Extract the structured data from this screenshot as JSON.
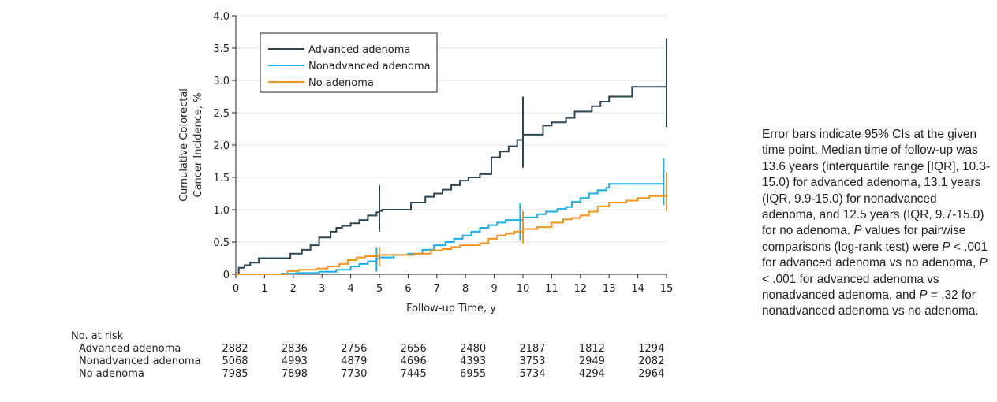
{
  "chart_data": {
    "type": "line",
    "ylabel_lines": [
      "Cumulative Colorectal",
      "Cancer Incidence, %"
    ],
    "xlabel": "Follow-up Time, y",
    "xlim": [
      0,
      15
    ],
    "ylim": [
      0,
      4
    ],
    "x_ticks": [
      "0",
      "1",
      "2",
      "3",
      "4",
      "5",
      "6",
      "7",
      "8",
      "9",
      "10",
      "11",
      "12",
      "13",
      "14",
      "15"
    ],
    "y_ticks": [
      "0",
      "0.5",
      "1.0",
      "1.5",
      "2.0",
      "2.5",
      "3.0",
      "3.5",
      "4.0"
    ],
    "grid": "horizontal",
    "legend_position": "top-left",
    "series": [
      {
        "name": "Advanced adenoma",
        "color": "#2d4654",
        "steps": [
          [
            0,
            0
          ],
          [
            0.1,
            0.1
          ],
          [
            0.3,
            0.14
          ],
          [
            0.5,
            0.18
          ],
          [
            0.8,
            0.25
          ],
          [
            1.5,
            0.25
          ],
          [
            1.9,
            0.32
          ],
          [
            2.3,
            0.38
          ],
          [
            2.6,
            0.45
          ],
          [
            2.9,
            0.57
          ],
          [
            3.3,
            0.66
          ],
          [
            3.5,
            0.72
          ],
          [
            3.7,
            0.75
          ],
          [
            4.0,
            0.79
          ],
          [
            4.3,
            0.84
          ],
          [
            4.6,
            0.91
          ],
          [
            4.9,
            0.96
          ],
          [
            5.0,
            0.98
          ],
          [
            5.1,
            1.0
          ],
          [
            5.7,
            1.0
          ],
          [
            6.1,
            1.11
          ],
          [
            6.6,
            1.2
          ],
          [
            6.9,
            1.25
          ],
          [
            7.2,
            1.31
          ],
          [
            7.5,
            1.38
          ],
          [
            7.8,
            1.45
          ],
          [
            8.1,
            1.5
          ],
          [
            8.5,
            1.55
          ],
          [
            8.9,
            1.81
          ],
          [
            9.2,
            1.9
          ],
          [
            9.5,
            1.98
          ],
          [
            9.8,
            2.08
          ],
          [
            10.0,
            2.16
          ],
          [
            10.7,
            2.3
          ],
          [
            11.0,
            2.35
          ],
          [
            11.5,
            2.42
          ],
          [
            11.8,
            2.52
          ],
          [
            12.4,
            2.6
          ],
          [
            12.7,
            2.67
          ],
          [
            13.0,
            2.75
          ],
          [
            13.8,
            2.9
          ],
          [
            14.2,
            2.9
          ],
          [
            15.0,
            2.9
          ]
        ],
        "ci": [
          {
            "x": 5,
            "low": 0.66,
            "high": 1.38
          },
          {
            "x": 10,
            "low": 1.65,
            "high": 2.75
          },
          {
            "x": 15,
            "low": 2.28,
            "high": 3.65
          }
        ]
      },
      {
        "name": "Nonadvanced adenoma",
        "color": "#1aaee5",
        "steps": [
          [
            0,
            0
          ],
          [
            1.4,
            0
          ],
          [
            1.6,
            0.01
          ],
          [
            2.1,
            0.02
          ],
          [
            2.9,
            0.04
          ],
          [
            3.5,
            0.07
          ],
          [
            4.0,
            0.12
          ],
          [
            4.3,
            0.16
          ],
          [
            4.6,
            0.2
          ],
          [
            4.9,
            0.24
          ],
          [
            5.0,
            0.26
          ],
          [
            5.5,
            0.3
          ],
          [
            6.0,
            0.32
          ],
          [
            6.5,
            0.38
          ],
          [
            6.9,
            0.45
          ],
          [
            7.3,
            0.5
          ],
          [
            7.6,
            0.55
          ],
          [
            7.9,
            0.6
          ],
          [
            8.2,
            0.66
          ],
          [
            8.5,
            0.72
          ],
          [
            8.8,
            0.76
          ],
          [
            9.1,
            0.8
          ],
          [
            9.4,
            0.84
          ],
          [
            9.7,
            0.84
          ],
          [
            10.0,
            0.88
          ],
          [
            10.2,
            0.88
          ],
          [
            10.5,
            0.93
          ],
          [
            10.8,
            0.97
          ],
          [
            11.2,
            1.01
          ],
          [
            11.5,
            1.04
          ],
          [
            11.7,
            1.12
          ],
          [
            12.0,
            1.18
          ],
          [
            12.3,
            1.25
          ],
          [
            12.6,
            1.3
          ],
          [
            12.9,
            1.34
          ],
          [
            13.0,
            1.4
          ],
          [
            14.9,
            1.4
          ]
        ],
        "ci": [
          {
            "x": 4.9,
            "low": 0.04,
            "high": 0.42
          },
          {
            "x": 9.9,
            "low": 0.52,
            "high": 1.1
          },
          {
            "x": 14.9,
            "low": 1.07,
            "high": 1.8
          }
        ]
      },
      {
        "name": "No adenoma",
        "color": "#f7941d",
        "steps": [
          [
            0,
            0
          ],
          [
            1.5,
            0
          ],
          [
            1.8,
            0.05
          ],
          [
            2.2,
            0.07
          ],
          [
            2.8,
            0.09
          ],
          [
            3.2,
            0.12
          ],
          [
            3.6,
            0.16
          ],
          [
            3.9,
            0.22
          ],
          [
            4.2,
            0.26
          ],
          [
            4.5,
            0.28
          ],
          [
            5.0,
            0.3
          ],
          [
            6.2,
            0.32
          ],
          [
            6.8,
            0.37
          ],
          [
            7.2,
            0.39
          ],
          [
            7.5,
            0.42
          ],
          [
            7.8,
            0.45
          ],
          [
            8.5,
            0.48
          ],
          [
            8.8,
            0.55
          ],
          [
            9.1,
            0.6
          ],
          [
            9.4,
            0.63
          ],
          [
            9.7,
            0.66
          ],
          [
            10.0,
            0.7
          ],
          [
            10.5,
            0.73
          ],
          [
            11.0,
            0.8
          ],
          [
            11.4,
            0.85
          ],
          [
            11.7,
            0.87
          ],
          [
            12.0,
            0.91
          ],
          [
            12.3,
            0.97
          ],
          [
            12.6,
            1.05
          ],
          [
            13.0,
            1.11
          ],
          [
            13.6,
            1.14
          ],
          [
            14.0,
            1.18
          ],
          [
            14.4,
            1.21
          ],
          [
            15.0,
            1.23
          ]
        ],
        "ci": [
          {
            "x": 5.0,
            "low": 0.12,
            "high": 0.42
          },
          {
            "x": 10.0,
            "low": 0.48,
            "high": 0.98
          },
          {
            "x": 15.0,
            "low": 0.98,
            "high": 1.58
          }
        ]
      }
    ],
    "risk_table": {
      "title": "No. at risk",
      "x": [
        0,
        2,
        4,
        6,
        8,
        10,
        12,
        14
      ],
      "rows": [
        {
          "label": "Advanced adenoma",
          "values": [
            "2882",
            "2836",
            "2756",
            "2656",
            "2480",
            "2187",
            "1812",
            "1294"
          ]
        },
        {
          "label": "Nonadvanced adenoma",
          "values": [
            "5068",
            "4993",
            "4879",
            "4696",
            "4393",
            "3753",
            "2949",
            "2082"
          ]
        },
        {
          "label": "No adenoma",
          "values": [
            "7985",
            "7898",
            "7730",
            "7445",
            "6955",
            "5734",
            "4294",
            "2964"
          ]
        }
      ]
    }
  },
  "note": {
    "text1": "Error bars indicate 95% CIs at the given time point. Median time of follow-up was 13.6 years (interquartile range [IQR], 10.3-15.0) for advanced adenoma, 13.1 years (IQR, 9.9-15.0) for nonadvanced adenoma, and 12.5 years (IQR, 9.7-15.0) for no adenoma. ",
    "p1": "P",
    "text2": " values for pairwise comparisons (log-rank test) were ",
    "p2": "P",
    "text3": " < .001 for advanced adenoma vs no adenoma, ",
    "p3": "P",
    "text4": " < .001 for advanced adenoma vs nonadvanced adenoma, and ",
    "p4": "P",
    "text5": " = .32 for nonadvanced adenoma vs no adenoma."
  }
}
